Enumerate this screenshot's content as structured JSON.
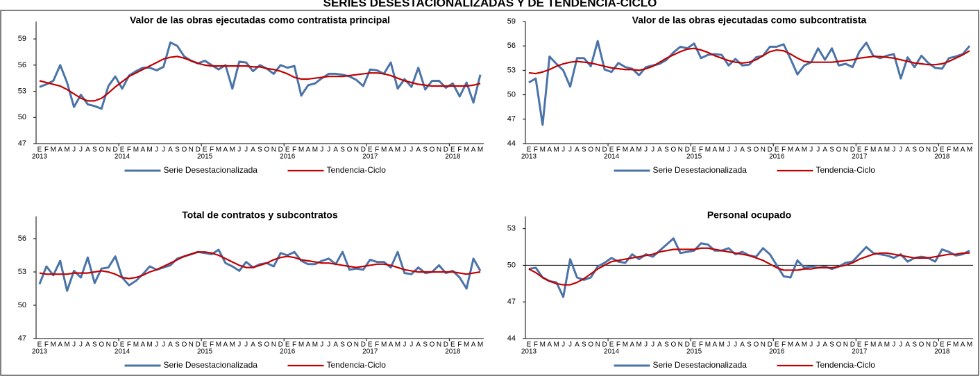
{
  "title": "SERIES DESESTACIONALIZADAS Y DE TENDENCIA-CICLO",
  "chart_data": [
    {
      "type": "line",
      "title": "Valor de las obras ejecutadas como contratista principal",
      "categories": [
        "E",
        "F",
        "M",
        "A",
        "M",
        "J",
        "J",
        "A",
        "S",
        "O",
        "N",
        "D",
        "E",
        "F",
        "M",
        "A",
        "M",
        "J",
        "J",
        "A",
        "S",
        "O",
        "N",
        "D",
        "E",
        "F",
        "M",
        "A",
        "M",
        "J",
        "J",
        "A",
        "S",
        "O",
        "N",
        "D",
        "E",
        "F",
        "M",
        "A",
        "M",
        "J",
        "J",
        "A",
        "S",
        "O",
        "N",
        "D",
        "E",
        "F",
        "M",
        "A",
        "M",
        "J",
        "J",
        "A",
        "S",
        "O",
        "N",
        "D",
        "E",
        "F",
        "M",
        "A",
        "M"
      ],
      "x_group_labels": [
        "2013",
        "2014",
        "2015",
        "2016",
        "2017",
        "2018"
      ],
      "ylim": [
        47,
        61
      ],
      "yticks": [
        47,
        50,
        53,
        56,
        59
      ],
      "legend": "bottom",
      "series": [
        {
          "name": "Serie Desestacionalizada",
          "color": "#4a73a8",
          "values": [
            53.5,
            53.8,
            54.2,
            56.0,
            54.0,
            51.2,
            52.6,
            51.5,
            51.3,
            51.0,
            53.6,
            54.7,
            53.3,
            54.8,
            55.3,
            55.7,
            55.7,
            55.4,
            55.8,
            58.6,
            58.2,
            57.0,
            56.5,
            56.2,
            56.5,
            56.0,
            55.5,
            56.0,
            53.3,
            56.4,
            56.3,
            55.3,
            56.0,
            55.6,
            55.0,
            56.0,
            55.7,
            55.9,
            52.5,
            53.7,
            53.9,
            54.5,
            55.0,
            55.0,
            54.9,
            54.7,
            54.3,
            53.6,
            55.5,
            55.4,
            55.0,
            56.3,
            53.3,
            54.4,
            53.5,
            55.7,
            53.2,
            54.2,
            54.2,
            53.4,
            53.9,
            52.4,
            54.0,
            51.7,
            54.9
          ]
        },
        {
          "name": "Tendencia-Ciclo",
          "color": "#c00000",
          "values": [
            54.2,
            54.0,
            53.8,
            53.6,
            53.2,
            52.7,
            52.2,
            51.9,
            51.9,
            52.2,
            52.8,
            53.5,
            54.1,
            54.7,
            55.1,
            55.5,
            55.9,
            56.3,
            56.7,
            56.9,
            57.0,
            56.8,
            56.5,
            56.2,
            56.0,
            55.9,
            55.9,
            55.9,
            55.9,
            55.9,
            55.9,
            55.8,
            55.8,
            55.6,
            55.5,
            55.3,
            55.0,
            54.6,
            54.4,
            54.4,
            54.5,
            54.6,
            54.7,
            54.7,
            54.7,
            54.8,
            54.9,
            55.0,
            55.1,
            55.1,
            55.0,
            54.8,
            54.5,
            54.2,
            54.0,
            53.8,
            53.7,
            53.6,
            53.6,
            53.6,
            53.6,
            53.6,
            53.6,
            53.7,
            53.9
          ]
        }
      ]
    },
    {
      "type": "line",
      "title": "Valor de las obras ejecutadas como subcontratista",
      "categories": [
        "E",
        "F",
        "M",
        "A",
        "M",
        "J",
        "J",
        "A",
        "S",
        "O",
        "N",
        "D",
        "E",
        "F",
        "M",
        "A",
        "M",
        "J",
        "J",
        "A",
        "S",
        "O",
        "N",
        "D",
        "E",
        "F",
        "M",
        "A",
        "M",
        "J",
        "J",
        "A",
        "S",
        "O",
        "N",
        "D",
        "E",
        "F",
        "M",
        "A",
        "M",
        "J",
        "J",
        "A",
        "S",
        "O",
        "N",
        "D",
        "E",
        "F",
        "M",
        "A",
        "M",
        "J",
        "J",
        "A",
        "S",
        "O",
        "N",
        "D",
        "E",
        "F",
        "M",
        "A",
        "M"
      ],
      "x_group_labels": [
        "2013",
        "2014",
        "2015",
        "2016",
        "2017",
        "2018"
      ],
      "ylim": [
        44,
        59
      ],
      "yticks": [
        44,
        47,
        50,
        53,
        56,
        59
      ],
      "legend": "bottom",
      "series": [
        {
          "name": "Serie Desestacionalizada",
          "color": "#4a73a8",
          "values": [
            51.5,
            52.0,
            46.3,
            54.7,
            53.8,
            53.0,
            51.0,
            54.5,
            54.5,
            53.5,
            56.6,
            53.1,
            52.8,
            53.9,
            53.4,
            53.2,
            52.4,
            53.4,
            53.6,
            53.8,
            54.3,
            55.2,
            55.9,
            55.7,
            56.3,
            54.5,
            54.9,
            55.0,
            54.9,
            53.6,
            54.4,
            53.6,
            53.7,
            54.6,
            54.8,
            55.9,
            55.9,
            56.2,
            54.4,
            52.5,
            53.6,
            54.0,
            55.7,
            54.3,
            55.7,
            53.6,
            53.8,
            53.4,
            55.3,
            56.4,
            54.8,
            54.5,
            54.8,
            55.0,
            52.0,
            54.6,
            53.4,
            54.8,
            53.9,
            53.3,
            53.2,
            54.5,
            54.7,
            55.0,
            56.0
          ]
        },
        {
          "name": "Tendencia-Ciclo",
          "color": "#c00000",
          "values": [
            52.7,
            52.6,
            52.8,
            53.1,
            53.5,
            53.8,
            54.0,
            54.1,
            54.0,
            53.9,
            53.7,
            53.5,
            53.3,
            53.2,
            53.1,
            53.1,
            53.0,
            53.2,
            53.5,
            54.0,
            54.5,
            54.9,
            55.3,
            55.6,
            55.7,
            55.5,
            55.2,
            54.8,
            54.5,
            54.2,
            54.0,
            53.9,
            54.0,
            54.3,
            54.8,
            55.3,
            55.5,
            55.4,
            55.0,
            54.5,
            54.1,
            54.0,
            54.0,
            54.0,
            54.0,
            54.1,
            54.2,
            54.3,
            54.5,
            54.6,
            54.7,
            54.7,
            54.6,
            54.5,
            54.3,
            54.1,
            53.9,
            53.8,
            53.7,
            53.7,
            53.8,
            54.1,
            54.5,
            54.9,
            55.4
          ]
        }
      ]
    },
    {
      "type": "line",
      "title": "Total de contratos y subcontratos",
      "categories": [
        "E",
        "F",
        "M",
        "A",
        "M",
        "J",
        "J",
        "A",
        "S",
        "O",
        "N",
        "D",
        "E",
        "F",
        "M",
        "A",
        "M",
        "J",
        "J",
        "A",
        "S",
        "O",
        "N",
        "D",
        "E",
        "F",
        "M",
        "A",
        "M",
        "J",
        "J",
        "A",
        "S",
        "O",
        "N",
        "D",
        "E",
        "F",
        "M",
        "A",
        "M",
        "J",
        "J",
        "A",
        "S",
        "O",
        "N",
        "D",
        "E",
        "F",
        "M",
        "A",
        "M",
        "J",
        "J",
        "A",
        "S",
        "O",
        "N",
        "D",
        "E",
        "F",
        "M",
        "A",
        "M"
      ],
      "x_group_labels": [
        "2013",
        "2014",
        "2015",
        "2016",
        "2017",
        "2018"
      ],
      "ylim": [
        47,
        58
      ],
      "yticks": [
        47,
        50,
        53,
        56
      ],
      "legend": "bottom",
      "series": [
        {
          "name": "Serie Desestacionalizada",
          "color": "#4a73a8",
          "values": [
            51.9,
            53.5,
            52.7,
            54.0,
            51.3,
            53.1,
            52.5,
            54.3,
            52.0,
            53.3,
            53.4,
            54.4,
            52.5,
            51.8,
            52.2,
            52.8,
            53.5,
            53.2,
            53.4,
            53.6,
            54.2,
            54.4,
            54.6,
            54.8,
            54.7,
            54.6,
            55.0,
            53.8,
            53.5,
            53.1,
            53.9,
            53.4,
            53.7,
            53.8,
            53.5,
            54.7,
            54.5,
            54.8,
            54.0,
            53.7,
            53.7,
            54.0,
            54.2,
            53.7,
            54.8,
            53.2,
            53.3,
            53.2,
            54.1,
            53.9,
            53.9,
            53.4,
            54.8,
            52.9,
            52.8,
            53.4,
            52.9,
            53.0,
            53.6,
            52.9,
            53.1,
            52.5,
            51.5,
            54.2,
            53.1
          ]
        },
        {
          "name": "Tendencia-Ciclo",
          "color": "#c00000",
          "values": [
            52.9,
            52.8,
            52.8,
            52.8,
            52.8,
            52.9,
            52.9,
            52.9,
            53.0,
            53.1,
            53.0,
            52.8,
            52.5,
            52.4,
            52.5,
            52.7,
            53.0,
            53.2,
            53.5,
            53.8,
            54.1,
            54.4,
            54.6,
            54.8,
            54.8,
            54.7,
            54.5,
            54.2,
            53.9,
            53.6,
            53.4,
            53.4,
            53.6,
            53.8,
            54.1,
            54.3,
            54.4,
            54.3,
            54.1,
            54.0,
            53.9,
            53.8,
            53.8,
            53.7,
            53.6,
            53.5,
            53.4,
            53.5,
            53.6,
            53.7,
            53.7,
            53.6,
            53.4,
            53.2,
            53.1,
            53.0,
            53.0,
            53.0,
            53.0,
            53.0,
            53.0,
            52.9,
            52.8,
            52.9,
            53.0
          ]
        }
      ]
    },
    {
      "type": "line",
      "title": "Personal ocupado",
      "categories": [
        "E",
        "F",
        "M",
        "A",
        "M",
        "J",
        "J",
        "A",
        "S",
        "O",
        "N",
        "D",
        "E",
        "F",
        "M",
        "A",
        "M",
        "J",
        "J",
        "A",
        "S",
        "O",
        "N",
        "D",
        "E",
        "F",
        "M",
        "A",
        "M",
        "J",
        "J",
        "A",
        "S",
        "O",
        "N",
        "D",
        "E",
        "F",
        "M",
        "A",
        "M",
        "J",
        "J",
        "A",
        "S",
        "O",
        "N",
        "D",
        "E",
        "F",
        "M",
        "A",
        "M",
        "J",
        "J",
        "A",
        "S",
        "O",
        "N",
        "D",
        "E",
        "F",
        "M",
        "A",
        "M"
      ],
      "x_group_labels": [
        "2013",
        "2014",
        "2015",
        "2016",
        "2017",
        "2018"
      ],
      "ylim": [
        44,
        54
      ],
      "yticks": [
        44,
        47,
        50,
        53
      ],
      "legend": "bottom",
      "reference_line": 50,
      "series": [
        {
          "name": "Serie Desestacionalizada",
          "color": "#4a73a8",
          "values": [
            49.7,
            49.8,
            49.0,
            48.7,
            48.6,
            47.4,
            50.5,
            49.0,
            48.8,
            49.0,
            49.9,
            50.2,
            50.6,
            50.3,
            50.2,
            50.9,
            50.5,
            50.9,
            50.7,
            51.2,
            51.7,
            52.2,
            51.0,
            51.1,
            51.2,
            51.8,
            51.7,
            51.2,
            51.2,
            51.4,
            50.9,
            51.1,
            50.8,
            50.7,
            51.4,
            50.9,
            50.0,
            49.1,
            49.0,
            50.4,
            49.8,
            49.9,
            49.8,
            49.9,
            49.7,
            49.9,
            50.2,
            50.3,
            50.9,
            51.5,
            51.0,
            50.9,
            50.8,
            50.6,
            50.9,
            50.3,
            50.6,
            50.7,
            50.6,
            50.3,
            51.3,
            51.1,
            50.8,
            50.9,
            51.2
          ]
        },
        {
          "name": "Tendencia-Ciclo",
          "color": "#c00000",
          "values": [
            49.7,
            49.4,
            49.0,
            48.7,
            48.5,
            48.4,
            48.4,
            48.6,
            48.9,
            49.3,
            49.7,
            50.0,
            50.3,
            50.4,
            50.5,
            50.6,
            50.7,
            50.8,
            50.9,
            51.1,
            51.2,
            51.3,
            51.3,
            51.3,
            51.3,
            51.4,
            51.4,
            51.3,
            51.2,
            51.1,
            51.0,
            50.9,
            50.8,
            50.6,
            50.4,
            50.1,
            49.8,
            49.6,
            49.6,
            49.6,
            49.7,
            49.7,
            49.8,
            49.8,
            49.8,
            49.9,
            50.0,
            50.2,
            50.5,
            50.7,
            50.9,
            51.0,
            51.0,
            50.9,
            50.8,
            50.7,
            50.6,
            50.6,
            50.6,
            50.7,
            50.8,
            50.9,
            50.9,
            51.0,
            51.0
          ]
        }
      ]
    }
  ]
}
